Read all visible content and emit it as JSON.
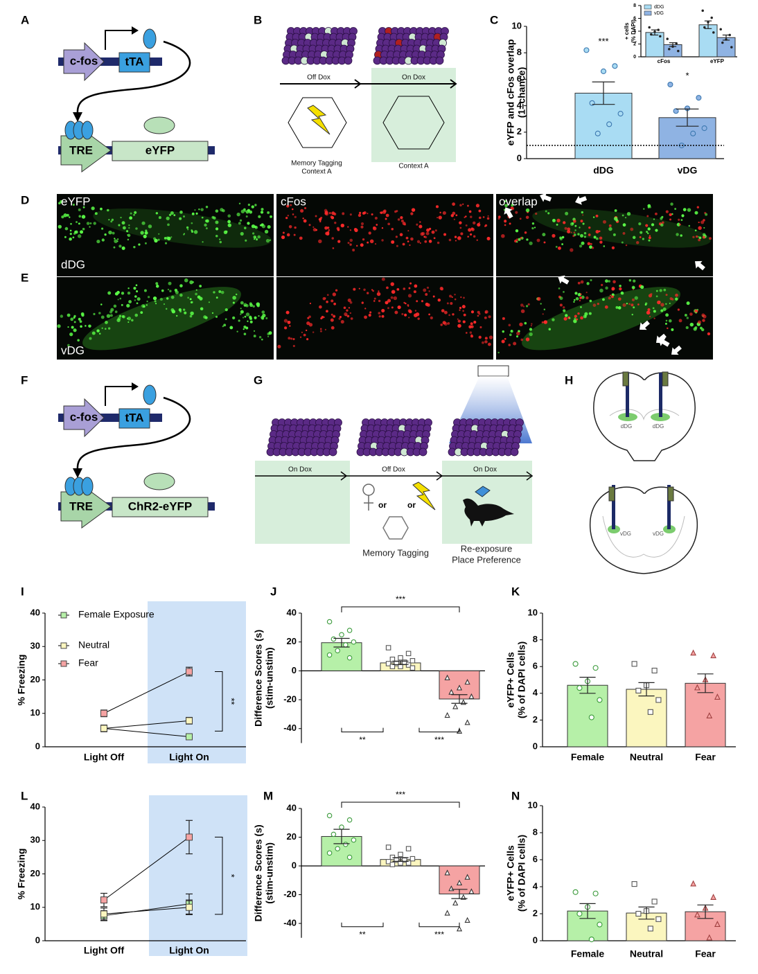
{
  "panel_labels": [
    "A",
    "B",
    "C",
    "D",
    "E",
    "F",
    "G",
    "H",
    "I",
    "J",
    "K",
    "L",
    "M",
    "N"
  ],
  "panel_a": {
    "promoter": "c-fos",
    "transactivator": "tTA",
    "response_element": "TRE",
    "reporter": "eYFP"
  },
  "panel_b": {
    "off_dox": "Off Dox",
    "on_dox": "On Dox",
    "tagging_context": [
      "Memory Tagging",
      "Context A"
    ],
    "test_context": "Context A"
  },
  "panel_d_e": {
    "channels": [
      "eYFP",
      "cFos",
      "overlap"
    ],
    "regions": [
      "dDG",
      "vDG"
    ]
  },
  "panel_f": {
    "promoter": "c-fos",
    "transactivator": "tTA",
    "response_element": "TRE",
    "reporter": "ChR2-eYFP"
  },
  "panel_g": {
    "phases": [
      "On Dox",
      "Off Dox",
      "On Dox"
    ],
    "or": [
      "or",
      "or"
    ],
    "tagging": "Memory Tagging",
    "test": [
      "Re-exposure",
      "Place Preference"
    ]
  },
  "panel_h": {
    "dorsal_labels": [
      "dDG",
      "dDG"
    ],
    "ventral_labels": [
      "vDG",
      "vDG"
    ]
  },
  "chart_data": [
    {
      "type": "bar",
      "y_label": [
        "eYFP and cFos overlap",
        "(1=chance)"
      ],
      "categories": [
        "dDG",
        "vDG"
      ],
      "values": [
        4.95,
        3.1
      ],
      "errors": [
        0.85,
        0.65
      ],
      "colors": [
        "#a9dcf3",
        "#8fb3e3"
      ],
      "points": [
        [
          8.2,
          7.0,
          6.6,
          4.2,
          3.4,
          2.6,
          1.9
        ],
        [
          5.6,
          4.6,
          3.8,
          3.6,
          2.3,
          1.9,
          1.0
        ]
      ],
      "marker": [
        "circle",
        "circle"
      ],
      "point_fill": [
        "#a9dcf3",
        "#8fb3e3"
      ],
      "point_stroke": [
        "#3c78b0",
        "#3c78b0"
      ],
      "significance": [
        "***",
        "*"
      ],
      "chance_level": 1,
      "ylim": [
        0,
        10
      ],
      "yticks": [
        0,
        2,
        4,
        6,
        8,
        10
      ]
    },
    {
      "type": "bar",
      "y_label": [
        "+ cells",
        "(% DAPI)"
      ],
      "categories": [
        "cFos",
        "eYFP"
      ],
      "series": [
        {
          "name": "dDG",
          "color": "#a9dcf3",
          "values": [
            3.8,
            5.0
          ],
          "errors": [
            0.4,
            0.6
          ],
          "points": [
            [
              4.6,
              4.2,
              3.9,
              3.5,
              3.2
            ],
            [
              7.2,
              6.1,
              5.4,
              4.6,
              3.8
            ]
          ],
          "marker": [
            "circle",
            "circle"
          ],
          "point_fill": [
            "#222",
            "#222"
          ],
          "point_stroke": [
            "#222",
            "#222"
          ]
        },
        {
          "name": "vDG",
          "color": "#8fb3e3",
          "values": [
            1.9,
            3.0
          ],
          "errors": [
            0.3,
            0.4
          ],
          "points": [
            [
              2.8,
              2.1,
              1.6,
              1.2,
              0.9
            ],
            [
              4.3,
              3.4,
              2.7,
              2.2,
              1.5
            ]
          ],
          "marker": [
            "circle",
            "circle"
          ],
          "point_fill": [
            "#222",
            "#222"
          ],
          "point_stroke": [
            "#222",
            "#222"
          ]
        }
      ],
      "legend": true,
      "ylim": [
        0,
        8
      ],
      "yticks": [
        0,
        2,
        4,
        6,
        8
      ]
    },
    {
      "type": "line",
      "y_label": "% Freezing",
      "categories": [
        "Light Off",
        "Light On"
      ],
      "series": [
        {
          "name": "Female Exposure",
          "color": "#b6f0a8",
          "values": [
            5.5,
            3.0
          ],
          "errors": [
            1.0,
            0.5
          ]
        },
        {
          "name": "Neutral",
          "color": "#fbf6bf",
          "values": [
            5.5,
            7.8
          ],
          "errors": [
            1.0,
            1.0
          ]
        },
        {
          "name": "Fear",
          "color": "#f5a3a3",
          "values": [
            10.0,
            22.5
          ],
          "errors": [
            1.0,
            1.3
          ]
        }
      ],
      "legend": true,
      "significance": "**",
      "ylim": [
        0,
        40
      ],
      "yticks": [
        0,
        10,
        20,
        30,
        40
      ]
    },
    {
      "type": "bar",
      "y_label": [
        "Difference Scores (s)",
        "(stim-unstim)"
      ],
      "categories": [
        null,
        null,
        null
      ],
      "values": [
        19.5,
        5.5,
        -19.5
      ],
      "errors": [
        3.0,
        1.2,
        3.0
      ],
      "colors": [
        "#b6f0a8",
        "#fbf6bf",
        "#f5a3a3"
      ],
      "points": [
        [
          34,
          28,
          25,
          22,
          20,
          18,
          14,
          11,
          9
        ],
        [
          16,
          12,
          9,
          8,
          7,
          6,
          5,
          5,
          4,
          3,
          3,
          2
        ],
        [
          -5,
          -8,
          -12,
          -15,
          -18,
          -22,
          -25,
          -31,
          -36,
          -42
        ]
      ],
      "marker": [
        "circle",
        "square",
        "triangle"
      ],
      "point_fill": [
        "#ffffff",
        "#ffffff",
        "#ffffff"
      ],
      "point_stroke": [
        "#3a9a3a",
        "#555555",
        "#333333"
      ],
      "significance": {
        "top": "***",
        "left": "**",
        "right": "***"
      },
      "ylim": [
        -50,
        40
      ],
      "yticks": [
        -40,
        -20,
        0,
        20,
        40
      ]
    },
    {
      "type": "bar",
      "y_label": [
        "eYFP+ Cells",
        "(% of DAPI cells)"
      ],
      "categories": [
        "Female",
        "Neutral",
        "Fear"
      ],
      "values": [
        4.6,
        4.3,
        4.75
      ],
      "errors": [
        0.6,
        0.5,
        0.7
      ],
      "colors": [
        "#b6f0a8",
        "#fbf6bf",
        "#f5a3a3"
      ],
      "points": [
        [
          6.2,
          5.9,
          4.9,
          4.4,
          3.5,
          2.2
        ],
        [
          6.2,
          5.7,
          4.6,
          4.2,
          3.5,
          2.6
        ],
        [
          7.0,
          6.8,
          5.0,
          4.4,
          3.7,
          2.3
        ]
      ],
      "marker": [
        "circle",
        "square",
        "triangle"
      ],
      "point_fill": [
        "#ffffff",
        "#ffffff",
        "#f5a3a3"
      ],
      "point_stroke": [
        "#3a9a3a",
        "#555555",
        "#a04040"
      ],
      "ylim": [
        0,
        10
      ],
      "yticks": [
        0,
        2,
        4,
        6,
        8,
        10
      ]
    },
    {
      "type": "line",
      "y_label": "% Freezing",
      "categories": [
        "Light Off",
        "Light On"
      ],
      "series": [
        {
          "name": "Female Exposure",
          "color": "#b6f0a8",
          "values": [
            7.5,
            11.0
          ],
          "errors": [
            1.5,
            3.0
          ]
        },
        {
          "name": "Neutral",
          "color": "#fbf6bf",
          "values": [
            8.0,
            10.0
          ],
          "errors": [
            1.8,
            2.2
          ]
        },
        {
          "name": "Fear",
          "color": "#f5a3a3",
          "values": [
            12.2,
            31.0
          ],
          "errors": [
            2.0,
            5.0
          ]
        }
      ],
      "legend": false,
      "significance": "*",
      "ylim": [
        0,
        40
      ],
      "yticks": [
        0,
        10,
        20,
        30,
        40
      ]
    },
    {
      "type": "bar",
      "y_label": [
        "Difference Scores (s)",
        "(stim-unstim)"
      ],
      "categories": [
        null,
        null,
        null
      ],
      "values": [
        20.5,
        4.5,
        -19.5
      ],
      "errors": [
        5.0,
        1.3,
        3.2
      ],
      "colors": [
        "#b6f0a8",
        "#fbf6bf",
        "#f5a3a3"
      ],
      "points": [
        [
          35,
          32,
          27,
          22,
          18,
          15,
          12,
          9,
          6
        ],
        [
          13,
          12,
          8,
          6,
          5,
          4,
          4,
          3,
          2,
          2,
          1
        ],
        [
          -5,
          -8,
          -12,
          -16,
          -18,
          -22,
          -26,
          -33,
          -38,
          -44
        ]
      ],
      "marker": [
        "circle",
        "square",
        "triangle"
      ],
      "point_fill": [
        "#ffffff",
        "#ffffff",
        "#ffffff"
      ],
      "point_stroke": [
        "#3a9a3a",
        "#555555",
        "#333333"
      ],
      "significance": {
        "top": "***",
        "left": "**",
        "right": "***"
      },
      "ylim": [
        -50,
        40
      ],
      "yticks": [
        -40,
        -20,
        0,
        20,
        40
      ]
    },
    {
      "type": "bar",
      "y_label": [
        "eYFP+ Cells",
        "(% of DAPI cells)"
      ],
      "categories": [
        "Female",
        "Neutral",
        "Fear"
      ],
      "values": [
        2.2,
        2.05,
        2.15
      ],
      "errors": [
        0.55,
        0.45,
        0.5
      ],
      "colors": [
        "#b6f0a8",
        "#fbf6bf",
        "#f5a3a3"
      ],
      "points": [
        [
          3.6,
          3.5,
          2.5,
          2.0,
          1.2,
          0.1
        ],
        [
          4.2,
          2.9,
          2.2,
          2.0,
          1.6,
          0.9
        ],
        [
          4.2,
          3.2,
          2.4,
          1.9,
          1.2,
          0.2
        ]
      ],
      "marker": [
        "circle",
        "square",
        "triangle"
      ],
      "point_fill": [
        "#ffffff",
        "#ffffff",
        "#f5a3a3"
      ],
      "point_stroke": [
        "#3a9a3a",
        "#555555",
        "#a04040"
      ],
      "ylim": [
        0,
        10
      ],
      "yticks": [
        0,
        2,
        4,
        6,
        8,
        10
      ]
    }
  ]
}
